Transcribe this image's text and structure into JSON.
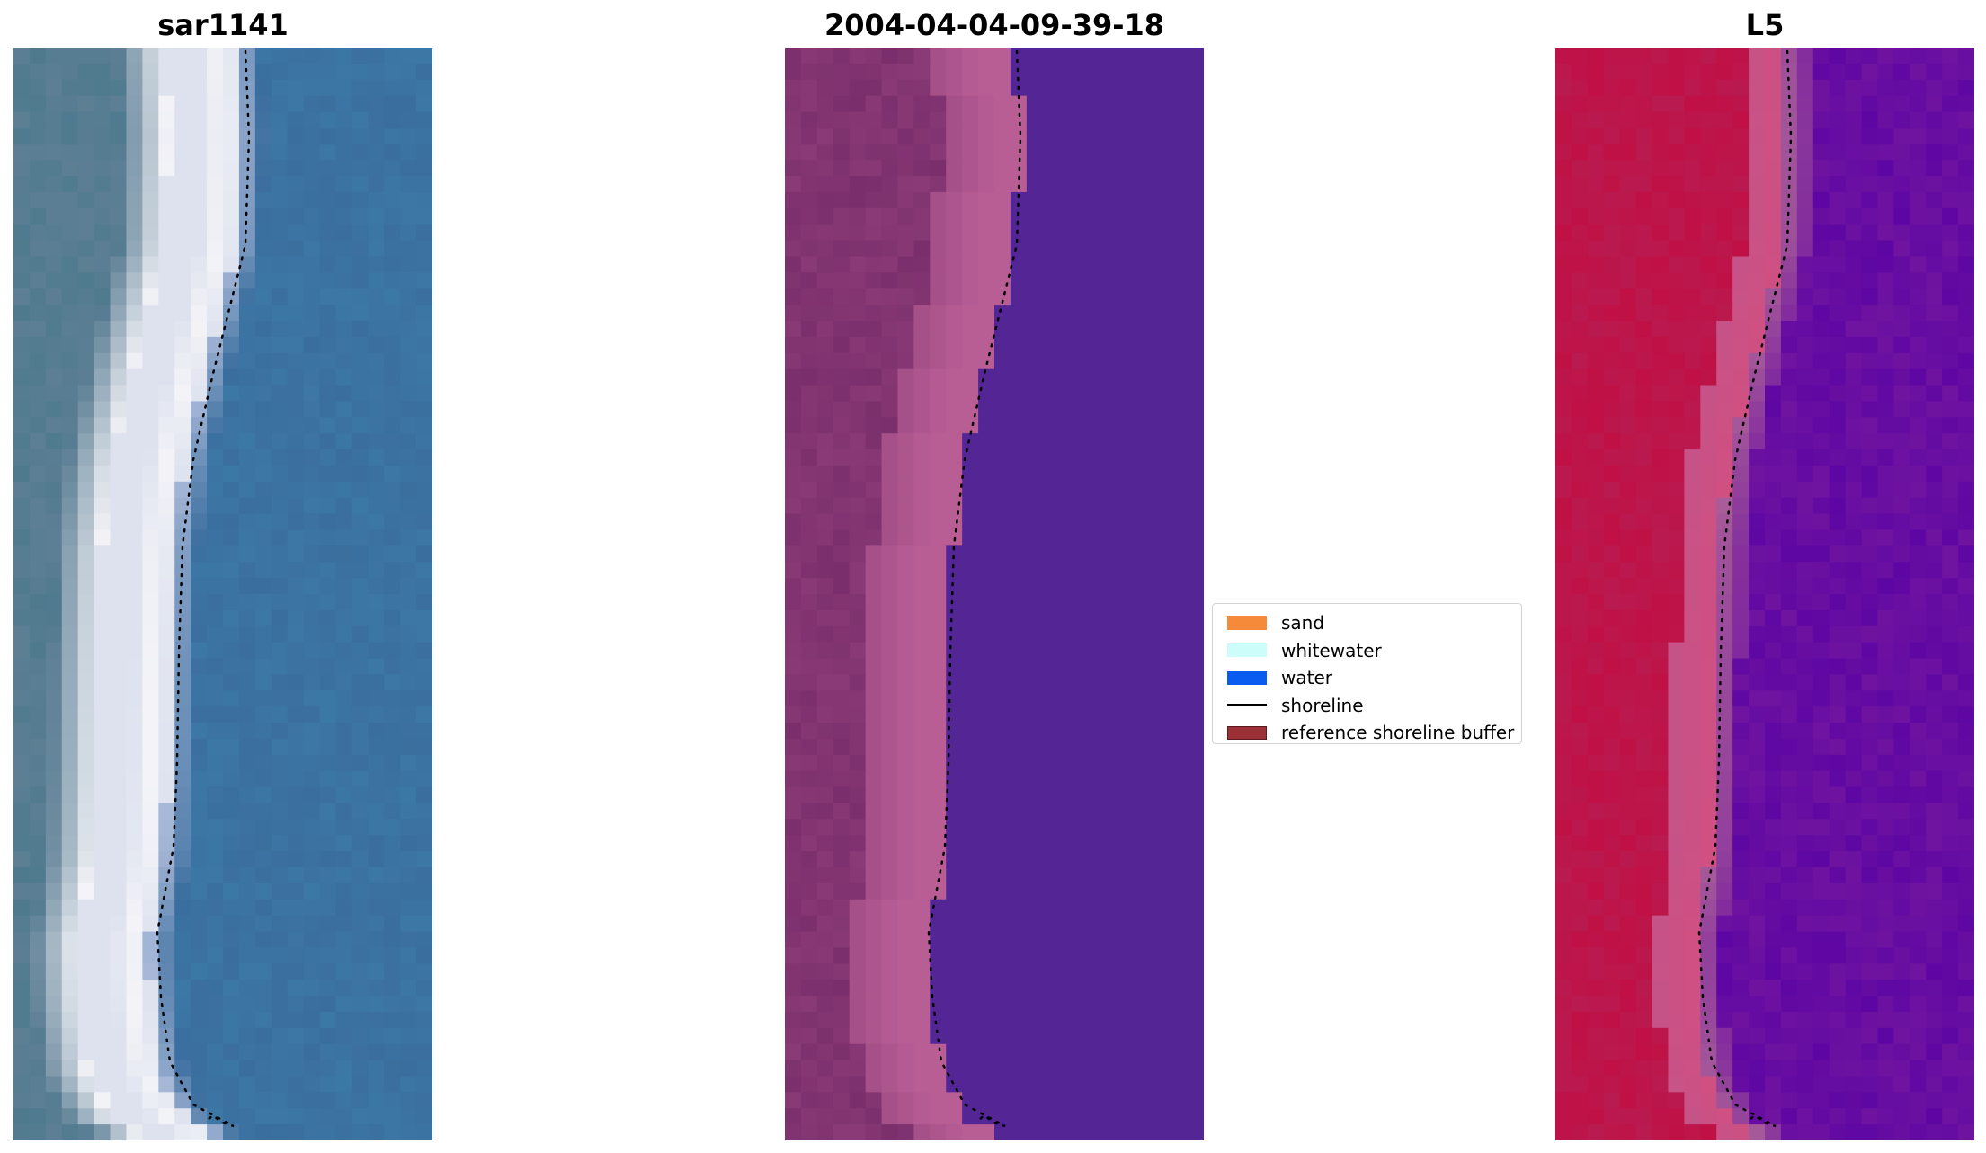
{
  "panels": [
    {
      "title": "sar1141",
      "palette": {
        "land": "#5d7f95",
        "land_alt": "#4f7a8e",
        "foam": "#f4f4f8",
        "foam_edge": "#a9b9d9",
        "water": "#3a6e9e",
        "water_alt": "#3d7aa8"
      }
    },
    {
      "title": "2004-04-04-09-39-18",
      "palette": {
        "land": "#7a2f6c",
        "land_alt": "#8a3a76",
        "band": "#b85e95",
        "band_edge": "#a24d86",
        "water": "#532595",
        "water_alt": "#532595"
      }
    },
    {
      "title": "L5",
      "palette": {
        "land": "#c01045",
        "land_alt": "#b91a50",
        "band": "#d24f80",
        "band_edge": "#a85c99",
        "water": "#6f14a0",
        "water_alt": "#5e06a3"
      }
    }
  ],
  "legend": {
    "items": [
      {
        "label": "sand",
        "kind": "patch",
        "color": "#f58b3a"
      },
      {
        "label": "whitewater",
        "kind": "patch",
        "color": "#ccfdfa"
      },
      {
        "label": "water",
        "kind": "patch",
        "color": "#0a5cf0"
      },
      {
        "label": "shoreline",
        "kind": "line",
        "color": "#000000"
      },
      {
        "label": "reference shoreline buffer",
        "kind": "patch",
        "color": "#9c3037",
        "edge": "#5a1a1e"
      }
    ]
  },
  "shoreline": {
    "color": "#000000",
    "style": "dotted"
  }
}
